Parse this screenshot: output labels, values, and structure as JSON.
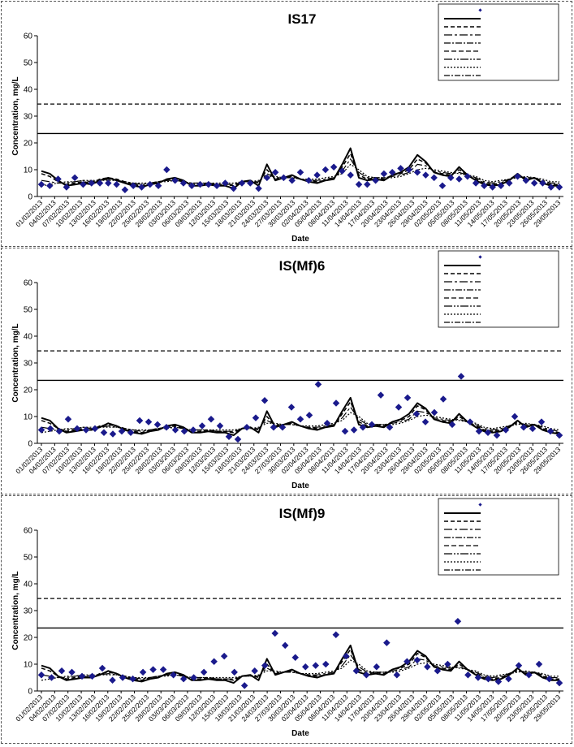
{
  "chart_data": [
    {
      "type": "line",
      "title": "IS17",
      "xlabel": "Date",
      "ylabel": "Concentration, mg/L",
      "ylim": [
        0,
        60
      ],
      "yticks": [
        "0",
        "10",
        "20",
        "30",
        "40",
        "50",
        "60"
      ],
      "xticks": [
        "01/02/2013",
        "04/02/2013",
        "07/02/2013",
        "10/02/2013",
        "13/02/2013",
        "16/02/2013",
        "19/02/2013",
        "22/02/2013",
        "25/02/2013",
        "28/02/2013",
        "03/03/2013",
        "06/03/2013",
        "09/03/2013",
        "12/03/2013",
        "15/03/2013",
        "18/03/2013",
        "21/03/2013",
        "24/03/2013",
        "27/03/2013",
        "30/03/2013",
        "02/04/2013",
        "05/04/2013",
        "08/04/2013",
        "11/04/2013",
        "14/04/2013",
        "17/04/2013",
        "20/04/2013",
        "23/04/2013",
        "26/04/2013",
        "29/04/2013",
        "02/05/2013",
        "05/05/2013",
        "08/05/2013",
        "11/05/2013",
        "14/05/2013",
        "17/05/2013",
        "20/05/2013",
        "23/05/2013",
        "26/05/2013",
        "29/05/2013"
      ],
      "grid": false,
      "legend_position": "top-right",
      "limits": [
        {
          "style": "dashed",
          "value": 34.5
        },
        {
          "style": "solid",
          "value": 23.5
        }
      ],
      "points": [
        4.5,
        4,
        6.5,
        3.5,
        7,
        4.5,
        5,
        5,
        5,
        4.5,
        2.5,
        4,
        3.5,
        4.5,
        4,
        10,
        6,
        5,
        4,
        4.5,
        4.5,
        4,
        5,
        3,
        5,
        5,
        3,
        7,
        9,
        7,
        6,
        9,
        6,
        8,
        10,
        11,
        9.5,
        8,
        4.5,
        4.5,
        6,
        8.5,
        9,
        10.5,
        10,
        9,
        8,
        7,
        4,
        7,
        6.5,
        7.5,
        5,
        4,
        3.5,
        4,
        5,
        7.5,
        6,
        5,
        5,
        3.5,
        3.5
      ],
      "series_lines": [
        [
          9.5,
          8.5,
          6,
          4,
          4.5,
          5,
          4.5,
          6,
          7,
          6,
          5,
          4,
          3.5,
          4.5,
          5,
          6.5,
          7,
          6,
          4,
          4,
          4.5,
          4,
          4,
          3,
          5.5,
          6,
          4,
          12,
          6,
          7,
          8,
          6.5,
          5.5,
          5,
          6,
          6.5,
          12,
          18,
          7,
          6,
          6.5,
          6,
          8,
          9,
          11,
          15.5,
          13,
          9,
          8,
          7.5,
          11,
          8,
          6,
          4.5,
          4,
          4.5,
          6,
          8.5,
          6,
          7,
          5,
          4,
          4
        ],
        [
          8.5,
          7.5,
          5.5,
          4.5,
          5,
          5.5,
          5,
          6.5,
          7,
          6.5,
          5.5,
          4.5,
          4,
          5,
          5.5,
          6,
          6.5,
          5.5,
          4.5,
          4.5,
          5,
          4.5,
          4.5,
          4,
          5.5,
          6,
          5,
          10,
          6.5,
          7,
          7.5,
          6.5,
          6,
          5.5,
          6,
          6.5,
          11,
          16,
          8,
          6.5,
          7,
          6.5,
          8,
          8.5,
          10,
          14,
          12.5,
          9,
          8.5,
          8,
          10,
          8,
          6.5,
          5,
          4.5,
          5,
          6.5,
          8,
          6.5,
          7,
          5.5,
          4.5,
          4.5
        ],
        [
          6,
          5.5,
          5,
          5,
          5.5,
          6,
          5.5,
          6,
          6.5,
          6,
          5.5,
          5,
          4.5,
          5,
          5.5,
          6,
          6,
          5.5,
          5,
          5,
          5,
          4.5,
          4.5,
          4.5,
          5.5,
          5.5,
          5.5,
          8.5,
          7,
          7,
          7,
          6.5,
          6,
          6,
          6.5,
          7,
          9.5,
          14,
          9,
          7,
          7,
          7,
          7.5,
          8,
          9,
          12,
          11.5,
          9.5,
          9,
          8.5,
          9,
          8,
          7,
          5.5,
          5,
          5.5,
          6.5,
          7.5,
          7,
          7,
          6,
          5,
          5
        ],
        [
          4,
          4.5,
          5,
          5.5,
          5.5,
          6,
          6,
          6,
          6,
          6,
          5.5,
          5,
          5,
          5,
          5.5,
          5.5,
          6,
          5.5,
          5,
          5,
          5,
          5,
          5,
          5,
          5.5,
          5.5,
          6,
          7.5,
          7.5,
          7,
          7,
          6.5,
          6.5,
          6.5,
          7,
          7.5,
          8.5,
          12,
          10,
          7.5,
          7,
          7,
          7,
          7.5,
          8.5,
          10,
          10.5,
          10,
          9.5,
          9,
          8.5,
          8,
          7.5,
          6,
          5.5,
          6,
          6.5,
          7,
          7.5,
          7,
          6.5,
          5.5,
          5.5
        ]
      ]
    },
    {
      "type": "line",
      "title": "IS(Mf)6",
      "xlabel": "Date",
      "ylabel": "Concentration, mg/L",
      "ylim": [
        0,
        60
      ],
      "yticks": [
        "0",
        "10",
        "20",
        "30",
        "40",
        "50",
        "60"
      ],
      "xticks": [
        "01/02/2013",
        "04/02/2013",
        "07/02/2013",
        "10/02/2013",
        "13/02/2013",
        "16/02/2013",
        "19/02/2013",
        "22/02/2013",
        "25/02/2013",
        "28/02/2013",
        "03/03/2013",
        "06/03/2013",
        "09/03/2013",
        "12/03/2013",
        "15/03/2013",
        "18/03/2013",
        "21/03/2013",
        "24/03/2013",
        "27/03/2013",
        "30/03/2013",
        "02/04/2013",
        "05/04/2013",
        "08/04/2013",
        "11/04/2013",
        "14/04/2013",
        "17/04/2013",
        "20/04/2013",
        "23/04/2013",
        "26/04/2013",
        "29/04/2013",
        "02/05/2013",
        "05/05/2013",
        "08/05/2013",
        "11/05/2013",
        "14/05/2013",
        "17/05/2013",
        "20/05/2013",
        "23/05/2013",
        "26/05/2013",
        "29/05/2013"
      ],
      "grid": false,
      "legend_position": "top-right",
      "limits": [
        {
          "style": "dashed",
          "value": 34.5
        },
        {
          "style": "solid",
          "value": 23.5
        }
      ],
      "points": [
        5,
        5.5,
        4.5,
        9,
        5.5,
        5,
        5.5,
        4,
        3.5,
        4.5,
        4,
        8.5,
        8,
        7,
        6,
        5,
        4.5,
        5,
        6.5,
        9,
        6.5,
        2.5,
        1.5,
        6,
        9.5,
        16,
        6,
        6,
        13.5,
        9,
        10.5,
        22,
        7.5,
        15,
        4.5,
        5,
        6,
        7,
        18,
        6,
        13.5,
        17,
        11,
        8,
        11.5,
        16.5,
        7,
        25,
        8,
        4.5,
        4,
        3,
        5,
        10,
        6,
        5.5,
        8,
        4.5,
        3
      ],
      "series_lines": [
        [
          9.5,
          8.5,
          5.5,
          4,
          4.5,
          5,
          5,
          6,
          7.5,
          6.5,
          5,
          4,
          3.5,
          4.5,
          5,
          6.5,
          7,
          6,
          4,
          4,
          4.5,
          4,
          4,
          3,
          5.5,
          6,
          4,
          12,
          6,
          7,
          8,
          6.5,
          5.5,
          5,
          6,
          6.5,
          12,
          17,
          7,
          6,
          6.5,
          6,
          8,
          9,
          11,
          15,
          13,
          9,
          8,
          7.5,
          11,
          8,
          6,
          4.5,
          4,
          4.5,
          6,
          8.5,
          6,
          7,
          5,
          4,
          3.5
        ],
        [
          8.5,
          7.5,
          5.5,
          4.5,
          5,
          5.5,
          5,
          6.5,
          7,
          6.5,
          5.5,
          4.5,
          4,
          5,
          5.5,
          6,
          6.5,
          5.5,
          4.5,
          4.5,
          5,
          4.5,
          4.5,
          4,
          5.5,
          6,
          5,
          10,
          6.5,
          7,
          7.5,
          6.5,
          6,
          5.5,
          6,
          6.5,
          11,
          15.5,
          8,
          6.5,
          7,
          6.5,
          8,
          8.5,
          10,
          14,
          12.5,
          9,
          8.5,
          8,
          10,
          8,
          6.5,
          5,
          4.5,
          5,
          6.5,
          8,
          6.5,
          7,
          5.5,
          4.5,
          4
        ],
        [
          6,
          5.5,
          5,
          5,
          5.5,
          6,
          5.5,
          6,
          6.5,
          6,
          5.5,
          5,
          4.5,
          5,
          5.5,
          6,
          6,
          5.5,
          5,
          5,
          5,
          4.5,
          4.5,
          4.5,
          5.5,
          5.5,
          5.5,
          8.5,
          7,
          7,
          7,
          6.5,
          6,
          6,
          6.5,
          7,
          9.5,
          13.5,
          9,
          7,
          7,
          7,
          7.5,
          8,
          9,
          12,
          11.5,
          9.5,
          9,
          8.5,
          9,
          8,
          7,
          5.5,
          5,
          5.5,
          6.5,
          7.5,
          7,
          7,
          6,
          5,
          4.5
        ],
        [
          4,
          4.5,
          5,
          5.5,
          5.5,
          6,
          6,
          6,
          6,
          6,
          5.5,
          5,
          5,
          5,
          5.5,
          5.5,
          6,
          5.5,
          5,
          5,
          5,
          5,
          5,
          5,
          5.5,
          5.5,
          6,
          7.5,
          7.5,
          7,
          7,
          6.5,
          6.5,
          6.5,
          7,
          7.5,
          8.5,
          11.5,
          10,
          7.5,
          7,
          7,
          7,
          7.5,
          8.5,
          10,
          10.5,
          10,
          9.5,
          9,
          8.5,
          8,
          7.5,
          6,
          5.5,
          6,
          6.5,
          7,
          7.5,
          7,
          6.5,
          5.5,
          5
        ]
      ]
    },
    {
      "type": "line",
      "title": "IS(Mf)9",
      "xlabel": "Date",
      "ylabel": "Concentration, mg/L",
      "ylim": [
        0,
        60
      ],
      "yticks": [
        "0",
        "10",
        "20",
        "30",
        "40",
        "50",
        "60"
      ],
      "xticks": [
        "01/02/2013",
        "04/02/2013",
        "07/02/2013",
        "10/02/2013",
        "13/02/2013",
        "16/02/2013",
        "19/02/2013",
        "22/02/2013",
        "25/02/2013",
        "28/02/2013",
        "03/03/2013",
        "06/03/2013",
        "09/03/2013",
        "12/03/2013",
        "15/03/2013",
        "18/03/2013",
        "21/03/2013",
        "24/03/2013",
        "27/03/2013",
        "30/03/2013",
        "02/04/2013",
        "05/04/2013",
        "08/04/2013",
        "11/04/2013",
        "14/04/2013",
        "17/04/2013",
        "20/04/2013",
        "23/04/2013",
        "26/04/2013",
        "29/04/2013",
        "02/05/2013",
        "05/05/2013",
        "08/05/2013",
        "11/05/2013",
        "14/05/2013",
        "17/05/2013",
        "20/05/2013",
        "23/05/2013",
        "26/05/2013",
        "29/05/2013"
      ],
      "grid": false,
      "legend_position": "top-right",
      "limits": [
        {
          "style": "dashed",
          "value": 34.5
        },
        {
          "style": "solid",
          "value": 23.5
        }
      ],
      "points": [
        6,
        5,
        7.5,
        7,
        5.5,
        5.5,
        8.5,
        4,
        5,
        4.5,
        7,
        8,
        8,
        6,
        4.5,
        5,
        7,
        11,
        13,
        7,
        2,
        7.5,
        9.5,
        21.5,
        17,
        12.5,
        9,
        9.5,
        10,
        21,
        13,
        7.5,
        6,
        9,
        18,
        6,
        11,
        11.5,
        9,
        7.5,
        10,
        26,
        6,
        5,
        4.5,
        3.5,
        4.5,
        9.5,
        6,
        10,
        4.5,
        3
      ],
      "series_lines": [
        [
          9.5,
          8.5,
          5.5,
          4,
          4.5,
          5,
          5,
          6,
          7.5,
          6.5,
          5,
          4,
          3.5,
          4.5,
          5,
          6.5,
          7,
          6,
          4,
          4,
          4.5,
          4,
          4,
          3,
          5.5,
          6,
          4,
          12,
          6,
          7,
          8,
          6.5,
          5.5,
          5,
          6,
          6.5,
          12,
          17,
          7,
          6,
          6.5,
          6,
          8,
          9,
          11,
          15,
          13,
          9,
          8,
          7.5,
          11,
          8,
          6,
          4.5,
          4,
          4.5,
          6,
          8.5,
          6,
          7,
          5,
          4,
          4
        ],
        [
          8.5,
          7.5,
          5.5,
          4.5,
          5,
          5.5,
          5,
          6.5,
          7,
          6.5,
          5.5,
          4.5,
          4,
          5,
          5.5,
          6,
          6.5,
          5.5,
          4.5,
          4.5,
          5,
          4.5,
          4.5,
          4,
          5.5,
          6,
          5,
          10,
          6.5,
          7,
          7.5,
          6.5,
          6,
          5.5,
          6,
          6.5,
          11,
          15.5,
          8,
          6.5,
          7,
          6.5,
          8,
          8.5,
          10,
          14,
          12.5,
          9,
          8.5,
          8,
          10,
          8,
          6.5,
          5,
          4.5,
          5,
          6.5,
          8,
          6.5,
          7,
          5.5,
          4.5,
          4.5
        ],
        [
          6,
          5.5,
          5,
          5,
          5.5,
          6,
          5.5,
          6,
          6.5,
          6,
          5.5,
          5,
          4.5,
          5,
          5.5,
          6,
          6,
          5.5,
          5,
          5,
          5,
          4.5,
          4.5,
          4.5,
          5.5,
          5.5,
          5.5,
          8.5,
          7,
          7,
          7,
          6.5,
          6,
          6,
          6.5,
          7,
          9.5,
          13.5,
          9,
          7,
          7,
          7,
          7.5,
          8,
          9,
          12,
          11.5,
          9.5,
          9,
          8.5,
          9,
          8,
          7,
          5.5,
          5,
          5.5,
          6.5,
          7.5,
          7,
          7,
          6,
          5,
          5
        ],
        [
          4,
          4.5,
          5,
          5.5,
          5.5,
          6,
          6,
          6,
          6,
          6,
          5.5,
          5,
          5,
          5,
          5.5,
          5.5,
          6,
          5.5,
          5,
          5,
          5,
          5,
          5,
          5,
          5.5,
          5.5,
          6,
          7.5,
          7.5,
          7,
          7,
          6.5,
          6.5,
          6.5,
          7,
          7.5,
          8.5,
          11.5,
          10,
          7.5,
          7,
          7,
          7,
          7.5,
          8.5,
          10,
          10.5,
          10,
          9.5,
          9,
          8.5,
          8,
          7.5,
          6,
          5.5,
          6,
          6.5,
          7,
          7.5,
          7,
          6.5,
          5.5,
          5.5
        ]
      ]
    }
  ],
  "colors": {
    "marker": "#1a1a8c",
    "line": "#000000",
    "axis": "#000000",
    "background": "#ffffff"
  }
}
